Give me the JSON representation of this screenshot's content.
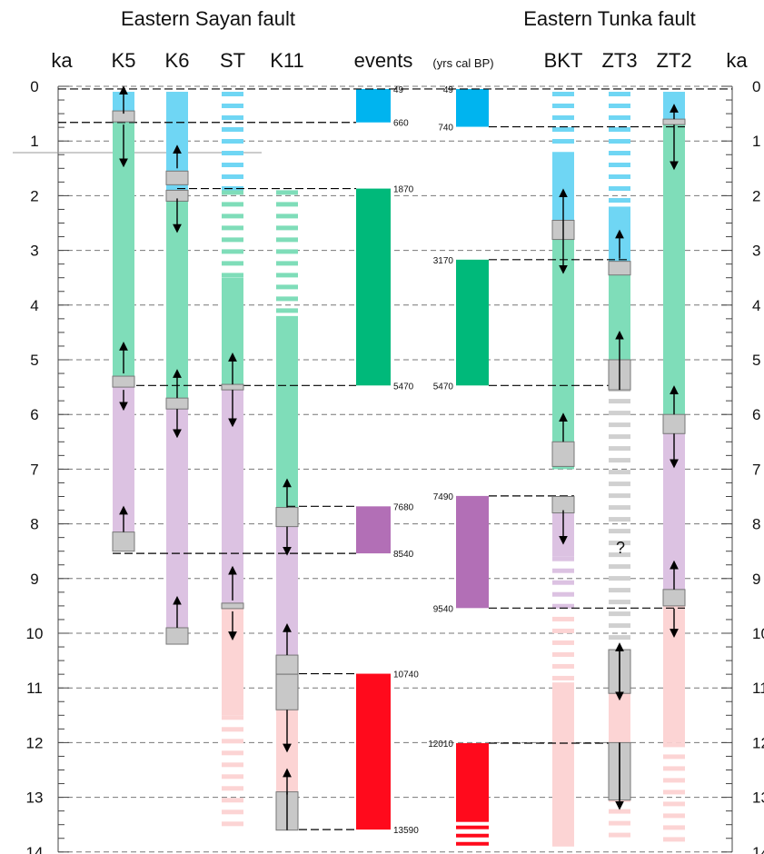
{
  "headers": {
    "left": "Eastern Sayan fault",
    "right": "Eastern Tunka fault"
  },
  "axis": {
    "unit_left": "ka",
    "unit_right": "ka",
    "min": 0,
    "max": 14,
    "ticks": [
      0,
      1,
      2,
      3,
      4,
      5,
      6,
      7,
      8,
      9,
      10,
      11,
      12,
      13,
      14
    ]
  },
  "columns": {
    "k5": "K5",
    "k6": "K6",
    "st": "ST",
    "k11": "K11",
    "events": "events",
    "events_unit": "(yrs cal BP)",
    "bkt": "BKT",
    "zt3": "ZT3",
    "zt2": "ZT2"
  },
  "question_mark": "?",
  "colors": {
    "blue": "#00b4ef",
    "green": "#00b97a",
    "purple": "#b26fb6",
    "red": "#ff0a1c"
  },
  "chart_data": {
    "type": "diagram",
    "sayan_events": [
      {
        "color": "blue",
        "from": "49",
        "to": "660"
      },
      {
        "color": "green",
        "from": "1870",
        "to": "5470"
      },
      {
        "color": "purple",
        "from": "7680",
        "to": "8540"
      },
      {
        "color": "red",
        "from": "10740",
        "to": "13590"
      }
    ],
    "tunka_events": [
      {
        "color": "blue",
        "from": "49",
        "to": "740"
      },
      {
        "color": "green",
        "from": "3170",
        "to": "5470"
      },
      {
        "color": "purple",
        "from": "7490",
        "to": "9540"
      },
      {
        "color": "red",
        "from": "12010",
        "to": ""
      }
    ],
    "profiles": [
      {
        "id": "K5",
        "segments": [
          {
            "color": "blue",
            "from": 0.1,
            "to": 0.6
          },
          {
            "color": "green",
            "from": 0.6,
            "to": 5.5
          },
          {
            "color": "purple",
            "from": 5.5,
            "to": 8.5
          }
        ]
      },
      {
        "id": "K6",
        "segments": [
          {
            "color": "blue",
            "from": 0.1,
            "to": 1.9
          },
          {
            "color": "green",
            "from": 1.9,
            "to": 5.9
          },
          {
            "color": "purple",
            "from": 5.9,
            "to": 10.2
          }
        ]
      },
      {
        "id": "ST",
        "segments": [
          {
            "color": "blue",
            "from": 0.1,
            "to": 1.9,
            "dashed": true
          },
          {
            "color": "green",
            "from": 1.9,
            "to": 5.5,
            "dashed_from": 1.9,
            "dashed_to": 3.5
          },
          {
            "color": "purple",
            "from": 5.5,
            "to": 9.5
          },
          {
            "color": "red",
            "from": 9.5,
            "to": 13.5,
            "dashed_from": 11.5,
            "dashed_to": 13.5
          }
        ]
      },
      {
        "id": "K11",
        "segments": [
          {
            "color": "green",
            "from": 1.9,
            "to": 7.7,
            "dashed_from": 1.9,
            "dashed_to": 4.2
          },
          {
            "color": "purple",
            "from": 7.7,
            "to": 10.7
          },
          {
            "color": "red",
            "from": 10.7,
            "to": 13.6
          }
        ]
      },
      {
        "id": "BKT",
        "segments": [
          {
            "color": "blue",
            "from": 0.1,
            "to": 2.8,
            "dashed_from": 0.1,
            "dashed_to": 1.2
          },
          {
            "color": "green",
            "from": 2.8,
            "to": 7.0
          },
          {
            "color": "purple",
            "from": 7.5,
            "to": 9.7,
            "dashed_from": 8.6,
            "dashed_to": 9.7
          },
          {
            "color": "red",
            "from": 9.7,
            "to": 13.9,
            "dashed_from": 9.7,
            "dashed_to": 10.9
          }
        ]
      },
      {
        "id": "ZT3",
        "segments": [
          {
            "color": "blue",
            "from": 0.1,
            "to": 3.2,
            "dashed_from": 0.1,
            "dashed_to": 2.2
          },
          {
            "color": "green",
            "from": 3.2,
            "to": 5.5
          },
          {
            "color": "gray",
            "from": 5.5,
            "to": 10.3,
            "dashed": true
          },
          {
            "color": "red",
            "from": 11.1,
            "to": 13.9,
            "dashed_from": 13.0,
            "dashed_to": 13.9
          }
        ]
      },
      {
        "id": "ZT2",
        "segments": [
          {
            "color": "blue",
            "from": 0.1,
            "to": 0.7
          },
          {
            "color": "green",
            "from": 0.7,
            "to": 6.3
          },
          {
            "color": "purple",
            "from": 6.3,
            "to": 9.5
          },
          {
            "color": "red",
            "from": 9.5,
            "to": 13.9,
            "dashed_from": 12.0,
            "dashed_to": 13.9
          }
        ]
      }
    ]
  }
}
